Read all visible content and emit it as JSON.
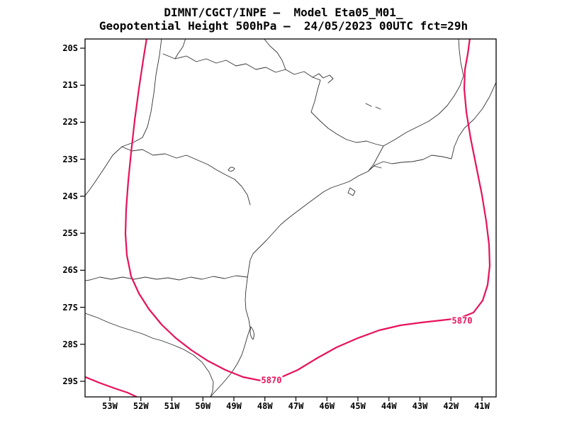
{
  "header": {
    "line1": "DIMNT/CGCT/INPE –  Model Eta05_M01_",
    "line2": "Geopotential Height 500hPa –  24/05/2023 00UTC fct=29h"
  },
  "axes": {
    "y_tick_labels": [
      "20S",
      "21S",
      "22S",
      "23S",
      "24S",
      "25S",
      "26S",
      "27S",
      "28S",
      "29S"
    ],
    "x_tick_labels": [
      "53W",
      "52W",
      "51W",
      "50W",
      "49W",
      "48W",
      "47W",
      "46W",
      "45W",
      "44W",
      "43W",
      "42W",
      "41W"
    ]
  },
  "contour": {
    "value": "5870",
    "color": "#e8115b"
  },
  "map": {
    "outline_color": "#333333",
    "frame_color": "#000000"
  }
}
